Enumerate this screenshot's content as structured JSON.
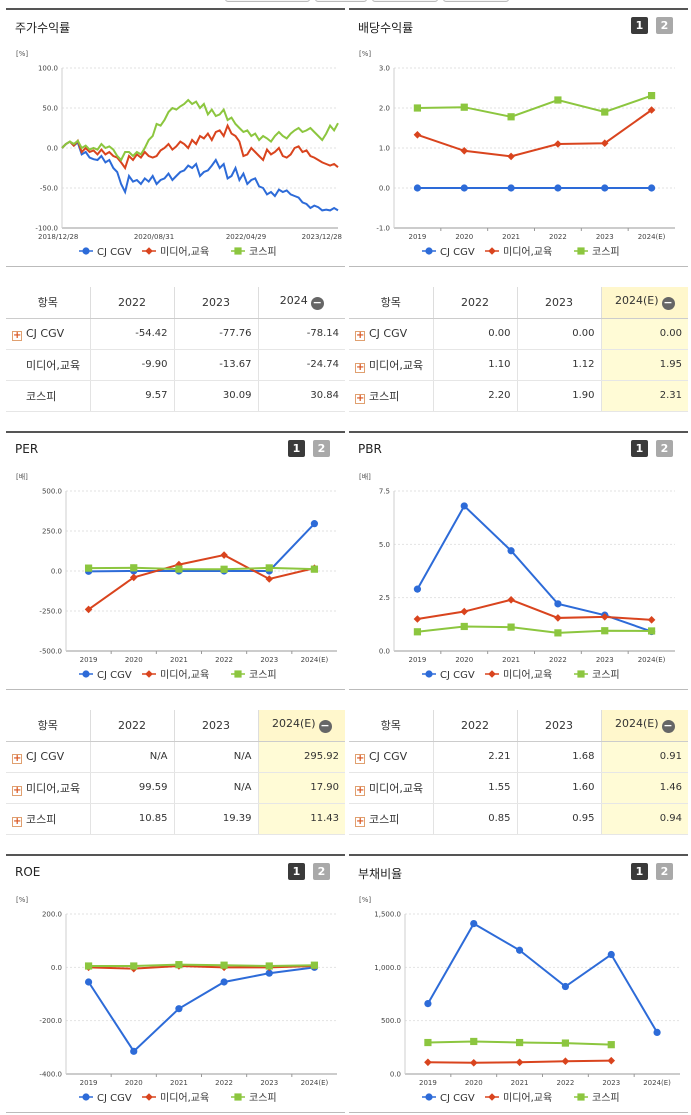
{
  "colors": {
    "cjcgv": "#2d6bd8",
    "media": "#d9441e",
    "kospi": "#8cc63f"
  },
  "legend": [
    "CJ CGV",
    "미디어,교육",
    "코스피"
  ],
  "pager": {
    "p1": "1",
    "p2": "2"
  },
  "panels": {
    "stock": {
      "title": "주가수익률",
      "unit": "[%]"
    },
    "dividend": {
      "title": "배당수익률",
      "unit": "[%]"
    },
    "per": {
      "title": "PER",
      "unit": "[배]"
    },
    "pbr": {
      "title": "PBR",
      "unit": "[배]"
    },
    "roe": {
      "title": "ROE",
      "unit": "[%]"
    },
    "debt": {
      "title": "부채비율",
      "unit": "[%]"
    }
  },
  "tables": {
    "stock": {
      "headers": [
        "항목",
        "2022",
        "2023",
        "2024"
      ],
      "rows": [
        {
          "label": "CJ CGV",
          "values": [
            "-54.42",
            "-77.76",
            "-78.14"
          ]
        },
        {
          "label": "미디어,교육",
          "values": [
            "-9.90",
            "-13.67",
            "-24.74"
          ]
        },
        {
          "label": "코스피",
          "values": [
            "9.57",
            "30.09",
            "30.84"
          ]
        }
      ]
    },
    "dividend": {
      "headers": [
        "항목",
        "2022",
        "2023",
        "2024(E)"
      ],
      "rows": [
        {
          "label": "CJ CGV",
          "values": [
            "0.00",
            "0.00",
            "0.00"
          ]
        },
        {
          "label": "미디어,교육",
          "values": [
            "1.10",
            "1.12",
            "1.95"
          ]
        },
        {
          "label": "코스피",
          "values": [
            "2.20",
            "1.90",
            "2.31"
          ]
        }
      ]
    },
    "per": {
      "headers": [
        "항목",
        "2022",
        "2023",
        "2024(E)"
      ],
      "rows": [
        {
          "label": "CJ CGV",
          "values": [
            "N/A",
            "N/A",
            "295.92"
          ]
        },
        {
          "label": "미디어,교육",
          "values": [
            "99.59",
            "N/A",
            "17.90"
          ]
        },
        {
          "label": "코스피",
          "values": [
            "10.85",
            "19.39",
            "11.43"
          ]
        }
      ]
    },
    "pbr": {
      "headers": [
        "항목",
        "2022",
        "2023",
        "2024(E)"
      ],
      "rows": [
        {
          "label": "CJ CGV",
          "values": [
            "2.21",
            "1.68",
            "0.91"
          ]
        },
        {
          "label": "미디어,교육",
          "values": [
            "1.55",
            "1.60",
            "1.46"
          ]
        },
        {
          "label": "코스피",
          "values": [
            "0.85",
            "0.95",
            "0.94"
          ]
        }
      ]
    }
  },
  "chart_data": [
    {
      "id": "stock",
      "type": "line",
      "title": "주가수익률",
      "ylim": [
        -100,
        100
      ],
      "yticks": [
        "100.0",
        "50.0",
        "0.0",
        "-50.0",
        "-100.0"
      ],
      "xtick_labels": [
        "2018/12/28",
        "2020/08/31",
        "2022/04/29",
        "2023/12/28"
      ],
      "series": [
        {
          "name": "CJ CGV",
          "values": [
            0,
            5,
            8,
            3,
            7,
            -8,
            -5,
            -12,
            -14,
            -15,
            -10,
            -18,
            -15,
            -25,
            -30,
            -45,
            -55,
            -35,
            -42,
            -40,
            -45,
            -38,
            -42,
            -35,
            -45,
            -40,
            -38,
            -32,
            -40,
            -35,
            -30,
            -28,
            -22,
            -25,
            -20,
            -35,
            -30,
            -28,
            -22,
            -15,
            -25,
            -20,
            -38,
            -35,
            -25,
            -40,
            -32,
            -45,
            -40,
            -38,
            -48,
            -50,
            -58,
            -55,
            -60,
            -52,
            -55,
            -53,
            -58,
            -60,
            -62,
            -68,
            -70,
            -75,
            -72,
            -74,
            -78,
            -77,
            -78,
            -75,
            -78
          ]
        },
        {
          "name": "미디어,교육",
          "values": [
            0,
            5,
            8,
            3,
            9,
            -5,
            0,
            -5,
            -3,
            -8,
            -2,
            -8,
            -5,
            -10,
            -12,
            -18,
            -25,
            -10,
            -15,
            -8,
            -12,
            -5,
            -10,
            -12,
            -10,
            -3,
            0,
            5,
            -2,
            2,
            8,
            5,
            0,
            10,
            5,
            15,
            12,
            18,
            10,
            20,
            22,
            15,
            28,
            18,
            15,
            8,
            -10,
            -8,
            0,
            -5,
            -10,
            -15,
            -2,
            -8,
            -5,
            0,
            -10,
            -12,
            -8,
            0,
            2,
            -5,
            -3,
            -10,
            -12,
            -15,
            -18,
            -20,
            -22,
            -20,
            -24
          ]
        },
        {
          "name": "코스피",
          "values": [
            0,
            5,
            8,
            5,
            9,
            0,
            3,
            -2,
            0,
            -2,
            5,
            0,
            2,
            -2,
            -10,
            -15,
            -5,
            -5,
            -10,
            -5,
            -8,
            0,
            10,
            15,
            30,
            28,
            35,
            45,
            50,
            48,
            52,
            55,
            60,
            55,
            58,
            50,
            55,
            42,
            48,
            40,
            42,
            48,
            35,
            38,
            30,
            25,
            20,
            22,
            15,
            18,
            10,
            15,
            12,
            8,
            15,
            20,
            15,
            12,
            18,
            22,
            25,
            20,
            22,
            25,
            20,
            15,
            10,
            18,
            28,
            22,
            31
          ]
        }
      ]
    },
    {
      "id": "dividend",
      "type": "line",
      "title": "배당수익률",
      "ylim": [
        -1,
        3
      ],
      "yticks": [
        "3.0",
        "2.0",
        "1.0",
        "0.0",
        "-1.0"
      ],
      "categories": [
        "2019",
        "2020",
        "2021",
        "2022",
        "2023",
        "2024(E)"
      ],
      "series": [
        {
          "name": "CJ CGV",
          "values": [
            0.0,
            0.0,
            0.0,
            0.0,
            0.0,
            0.0
          ]
        },
        {
          "name": "미디어,교육",
          "values": [
            1.33,
            0.93,
            0.79,
            1.1,
            1.12,
            1.95
          ]
        },
        {
          "name": "코스피",
          "values": [
            2.0,
            2.02,
            1.78,
            2.2,
            1.9,
            2.31
          ]
        }
      ]
    },
    {
      "id": "per",
      "type": "line",
      "title": "PER",
      "ylim": [
        -500,
        500
      ],
      "yticks": [
        "500.0",
        "250.0",
        "0.0",
        "-250.0",
        "-500.0"
      ],
      "categories": [
        "2019",
        "2020",
        "2021",
        "2022",
        "2023",
        "2024(E)"
      ],
      "series": [
        {
          "name": "CJ CGV",
          "values": [
            -2,
            0,
            0,
            0,
            0,
            295.92
          ]
        },
        {
          "name": "미디어,교육",
          "values": [
            -240,
            -40,
            40,
            99.59,
            -50,
            17.9
          ]
        },
        {
          "name": "코스피",
          "values": [
            18,
            20,
            12,
            10.85,
            19.39,
            11.43
          ]
        }
      ]
    },
    {
      "id": "pbr",
      "type": "line",
      "title": "PBR",
      "ylim": [
        0,
        7.5
      ],
      "yticks": [
        "7.5",
        "5.0",
        "2.5",
        "0.0"
      ],
      "categories": [
        "2019",
        "2020",
        "2021",
        "2022",
        "2023",
        "2024(E)"
      ],
      "series": [
        {
          "name": "CJ CGV",
          "values": [
            2.9,
            6.8,
            4.7,
            2.21,
            1.68,
            0.91
          ]
        },
        {
          "name": "미디어,교육",
          "values": [
            1.5,
            1.85,
            2.4,
            1.55,
            1.6,
            1.46
          ]
        },
        {
          "name": "코스피",
          "values": [
            0.9,
            1.15,
            1.12,
            0.85,
            0.95,
            0.94
          ]
        }
      ]
    },
    {
      "id": "roe",
      "type": "line",
      "title": "ROE",
      "ylim": [
        -400,
        200
      ],
      "yticks": [
        "200.0",
        "0.0",
        "-200.0",
        "-400.0"
      ],
      "categories": [
        "2019",
        "2020",
        "2021",
        "2022",
        "2023",
        "2024(E)"
      ],
      "series": [
        {
          "name": "CJ CGV",
          "values": [
            -55,
            -315,
            -155,
            -55,
            -22,
            0
          ]
        },
        {
          "name": "미디어,교육",
          "values": [
            0,
            -5,
            5,
            0,
            0,
            5
          ]
        },
        {
          "name": "코스피",
          "values": [
            5,
            5,
            10,
            8,
            5,
            8
          ]
        }
      ]
    },
    {
      "id": "debt",
      "type": "line",
      "title": "부채비율",
      "ylim": [
        0,
        1500
      ],
      "yticks": [
        "1,500.0",
        "1,000.0",
        "500.0",
        "0.0"
      ],
      "categories": [
        "2019",
        "2020",
        "2021",
        "2022",
        "2023",
        "2024(E)"
      ],
      "series": [
        {
          "name": "CJ CGV",
          "values": [
            660,
            1410,
            1160,
            820,
            1120,
            390
          ]
        },
        {
          "name": "미디어,교육",
          "values": [
            110,
            105,
            110,
            120,
            125,
            null
          ]
        },
        {
          "name": "코스피",
          "values": [
            295,
            305,
            295,
            290,
            275,
            null
          ]
        }
      ]
    }
  ]
}
